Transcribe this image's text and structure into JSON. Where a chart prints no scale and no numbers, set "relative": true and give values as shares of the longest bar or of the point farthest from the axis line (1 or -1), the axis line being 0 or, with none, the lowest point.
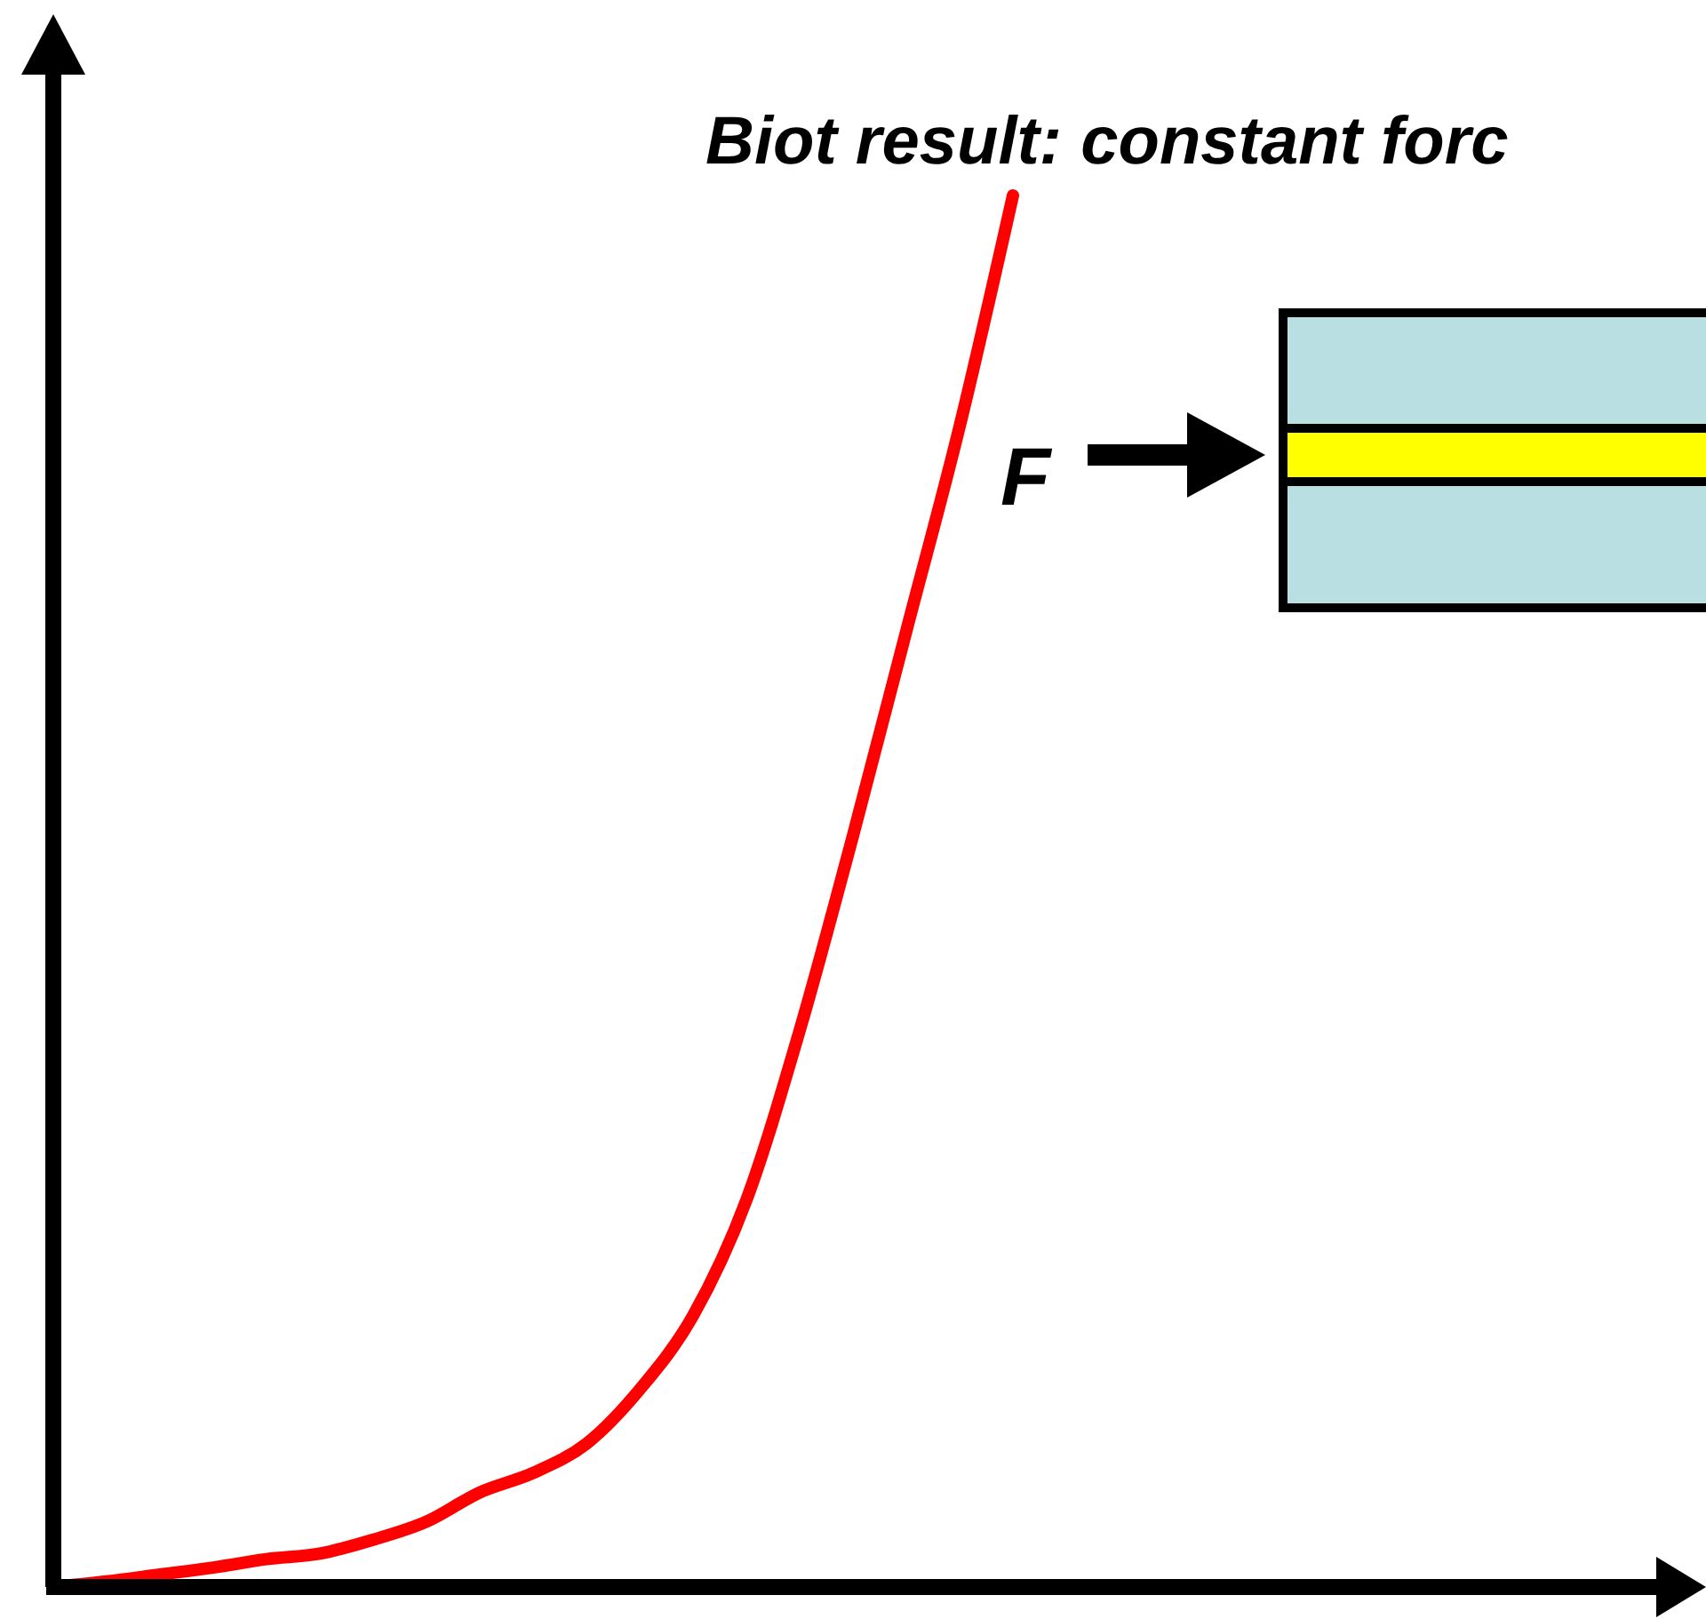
{
  "chart_data": {
    "type": "line",
    "title": "Biot result: constant forc",
    "annotations": [
      "F"
    ],
    "relative": true,
    "categories": [
      null,
      null,
      null,
      null,
      null,
      null,
      null,
      null,
      null,
      null,
      null,
      null,
      null,
      null,
      null,
      null,
      null,
      null,
      null,
      null,
      null,
      null,
      null,
      null,
      null,
      null,
      null,
      null,
      null,
      null,
      null
    ],
    "series": [
      {
        "color": "#ff0000",
        "values": [
          0,
          0.004,
          0.009,
          0.014,
          0.02,
          0.024,
          0.034,
          0.047,
          0.068,
          0.082,
          0.103,
          0.142,
          0.195,
          0.278,
          0.4,
          0.54,
          0.687,
          0.834,
          1,
          null,
          null,
          null,
          null,
          null,
          null,
          null,
          null,
          null,
          null,
          null,
          null
        ]
      }
    ],
    "grid": false,
    "marker": "none",
    "line_style": "solid"
  }
}
